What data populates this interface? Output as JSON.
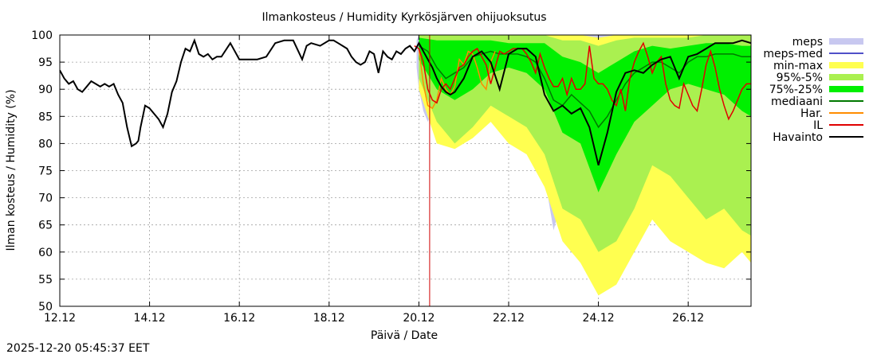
{
  "chart_data": {
    "type": "line",
    "title": "Ilmankosteus / Humidity  Kyrkösjärven ohijuoksutus",
    "xlabel": "Päivä / Date",
    "ylabel": "Ilman kosteus / Humidity (%)",
    "ylim": [
      50,
      100
    ],
    "y_ticks": [
      50,
      55,
      60,
      65,
      70,
      75,
      80,
      85,
      90,
      95,
      100
    ],
    "xlim_days": [
      0,
      15.4
    ],
    "x_ticks": [
      {
        "day": 0,
        "label": "12.12"
      },
      {
        "day": 2,
        "label": "14.12"
      },
      {
        "day": 4,
        "label": "16.12"
      },
      {
        "day": 6,
        "label": "18.12"
      },
      {
        "day": 8,
        "label": "20.12"
      },
      {
        "day": 10,
        "label": "22.12"
      },
      {
        "day": 12,
        "label": "24.12"
      },
      {
        "day": 14,
        "label": "26.12"
      }
    ],
    "forecast_start_day": 8.24,
    "grid": true,
    "legend_position": "right",
    "legend": [
      {
        "key": "meps",
        "label": "meps",
        "kind": "band",
        "color": "#c8c8f0"
      },
      {
        "key": "meps_med",
        "label": "meps-med",
        "kind": "line",
        "color": "#5050c8"
      },
      {
        "key": "minmax",
        "label": "min-max",
        "kind": "band",
        "color": "#ffff50"
      },
      {
        "key": "p95_5",
        "label": "95%-5%",
        "kind": "band",
        "color": "#aaf050"
      },
      {
        "key": "p75_25",
        "label": "75%-25%",
        "kind": "band",
        "color": "#00f000"
      },
      {
        "key": "mediaani",
        "label": "mediaani",
        "kind": "line",
        "color": "#007800"
      },
      {
        "key": "har",
        "label": "Har.",
        "kind": "line",
        "color": "#ff8c00"
      },
      {
        "key": "il",
        "label": "IL",
        "kind": "line",
        "color": "#e00000"
      },
      {
        "key": "havainto",
        "label": "Havainto",
        "kind": "line",
        "color": "#000000"
      }
    ],
    "series": {
      "havainto": {
        "x": [
          0,
          0.1,
          0.2,
          0.3,
          0.4,
          0.5,
          0.6,
          0.7,
          0.8,
          0.9,
          1.0,
          1.1,
          1.2,
          1.3,
          1.4,
          1.5,
          1.6,
          1.7,
          1.75,
          1.8,
          1.9,
          2.0,
          2.1,
          2.2,
          2.3,
          2.4,
          2.5,
          2.6,
          2.7,
          2.8,
          2.9,
          3.0,
          3.1,
          3.2,
          3.3,
          3.4,
          3.5,
          3.6,
          3.8,
          4.0,
          4.2,
          4.4,
          4.6,
          4.8,
          5.0,
          5.2,
          5.4,
          5.5,
          5.6,
          5.8,
          6.0,
          6.1,
          6.2,
          6.3,
          6.4,
          6.5,
          6.6,
          6.7,
          6.8,
          6.9,
          7.0,
          7.1,
          7.2,
          7.3,
          7.4,
          7.5,
          7.6,
          7.7,
          7.8,
          7.9,
          8.0,
          8.1,
          8.2,
          8.3,
          8.4,
          8.5,
          8.6,
          8.7,
          8.8,
          9.0,
          9.2,
          9.4,
          9.6,
          9.8,
          10.0,
          10.2,
          10.4,
          10.6,
          10.8,
          11.0,
          11.2,
          11.4,
          11.6,
          11.8,
          12.0,
          12.2,
          12.4,
          12.6,
          12.8,
          13.0,
          13.2,
          13.4,
          13.6,
          13.8,
          14.0,
          14.2,
          14.4,
          14.6,
          14.8,
          15.0,
          15.2,
          15.4
        ],
        "y": [
          93.5,
          92,
          91,
          91.5,
          90,
          89.5,
          90.5,
          91.5,
          91,
          90.5,
          91,
          90.5,
          91,
          89,
          87.5,
          83,
          79.5,
          80,
          80.5,
          83,
          87,
          86.5,
          85.5,
          84.5,
          83,
          85.5,
          89.5,
          91.5,
          95,
          97.5,
          97,
          99,
          96.5,
          96,
          96.5,
          95.5,
          96,
          96,
          98.5,
          95.5,
          95.5,
          95.5,
          96,
          98.5,
          99,
          99,
          95.5,
          98,
          98.5,
          98,
          99,
          99,
          98.5,
          98,
          97.5,
          96,
          95,
          94.5,
          95,
          97,
          96.5,
          93,
          97,
          96,
          95.5,
          97,
          96.5,
          97.5,
          98,
          97,
          98.5,
          97,
          95.5,
          94,
          92,
          90.5,
          89.5,
          89,
          89.5,
          92,
          96,
          97,
          95,
          90,
          96.5,
          97.5,
          97.5,
          96,
          89,
          86,
          87,
          85.5,
          86.5,
          83,
          76,
          82,
          89.5,
          93,
          93.5,
          93,
          94.5,
          95.5,
          96,
          92,
          96,
          96.5,
          97.5,
          98.5,
          98.5,
          98.5,
          99,
          98.5
        ]
      },
      "il": {
        "x": [
          7.9,
          8.0,
          8.1,
          8.2,
          8.3,
          8.4,
          8.5,
          8.6,
          8.7,
          8.8,
          8.9,
          9.0,
          9.1,
          9.2,
          9.3,
          9.4,
          9.5,
          9.6,
          9.7,
          9.8,
          9.9,
          10.0,
          10.1,
          10.2,
          10.3,
          10.4,
          10.5,
          10.6,
          10.7,
          10.8,
          10.9,
          11.0,
          11.1,
          11.2,
          11.3,
          11.4,
          11.5,
          11.6,
          11.7,
          11.8,
          11.9,
          12.0,
          12.1,
          12.2,
          12.3,
          12.4,
          12.5,
          12.6,
          12.7,
          12.8,
          12.9,
          13.0,
          13.1,
          13.2,
          13.3,
          13.4,
          13.5,
          13.6,
          13.7,
          13.8,
          13.9,
          14.0,
          14.1,
          14.2,
          14.3,
          14.4,
          14.5,
          14.6,
          14.7,
          14.8,
          14.9,
          15.0,
          15.1,
          15.2,
          15.3,
          15.4
        ],
        "y": [
          98,
          97.5,
          95,
          90,
          88,
          87.5,
          90,
          91,
          90,
          92,
          94,
          94.5,
          96,
          97,
          97.5,
          96,
          94.5,
          91,
          94,
          97,
          96.5,
          97,
          97.5,
          97.5,
          97.5,
          96.5,
          95,
          93,
          96.5,
          94,
          92,
          90.5,
          90.5,
          92,
          89,
          92,
          90,
          90,
          91,
          98,
          92,
          91,
          91,
          90,
          88,
          87,
          90,
          86,
          92,
          95,
          97,
          98.5,
          96,
          93,
          95,
          96,
          91,
          88,
          87,
          86.5,
          91,
          89,
          87,
          86,
          90,
          94.5,
          97,
          94,
          90,
          87,
          84.5,
          86,
          88,
          90,
          91,
          91
        ]
      },
      "har": {
        "x": [
          8.0,
          8.1,
          8.2,
          8.3,
          8.4,
          8.5,
          8.6,
          8.7,
          8.8,
          8.9,
          9.0,
          9.1,
          9.2,
          9.3,
          9.4,
          9.5,
          9.6,
          9.7
        ],
        "y": [
          97.5,
          91,
          87,
          86.5,
          88,
          92,
          90,
          89,
          90.5,
          95.5,
          94.5,
          97,
          96.5,
          94,
          91,
          90,
          95,
          97
        ]
      },
      "mediaani": {
        "x": [
          8.0,
          8.2,
          8.4,
          8.6,
          8.8,
          9.0,
          9.2,
          9.4,
          9.6,
          9.8,
          10.0,
          10.2,
          10.4,
          10.6,
          10.8,
          11.0,
          11.2,
          11.4,
          11.6,
          11.8,
          12.0,
          12.2,
          12.4,
          12.6,
          12.8,
          13.0,
          13.2,
          13.4,
          13.6,
          13.8,
          14.0,
          14.2,
          14.4,
          14.6,
          14.8,
          15.0,
          15.2,
          15.4
        ],
        "y": [
          98,
          97,
          94,
          92,
          93,
          94,
          96,
          96.5,
          97,
          96.5,
          96.5,
          96.5,
          96,
          95,
          92,
          88,
          87,
          89,
          87.5,
          86,
          83,
          85,
          88,
          91,
          93,
          94,
          95,
          95,
          94,
          93,
          95,
          96,
          96,
          96.5,
          96.5,
          96.5,
          96,
          96
        ]
      },
      "p75_25": {
        "x": [
          8.0,
          8.4,
          8.8,
          9.2,
          9.6,
          10.0,
          10.4,
          10.8,
          11.2,
          11.6,
          12.0,
          12.4,
          12.8,
          13.2,
          13.6,
          14.0,
          14.4,
          14.8,
          15.2,
          15.4
        ],
        "hi": [
          99.5,
          99,
          99,
          99,
          99,
          98.5,
          98.5,
          98.5,
          96,
          95,
          93,
          95,
          97,
          98,
          97.5,
          98,
          98.5,
          98.5,
          98,
          98
        ],
        "lo": [
          95.5,
          90,
          88,
          90,
          93,
          94,
          93,
          90,
          82,
          80,
          71,
          78,
          84,
          87,
          90,
          91,
          90,
          89,
          86,
          85
        ]
      },
      "p95_5": {
        "x": [
          8.0,
          8.4,
          8.8,
          9.2,
          9.6,
          10.0,
          10.4,
          10.8,
          11.2,
          11.6,
          12.0,
          12.4,
          12.8,
          13.2,
          13.6,
          14.0,
          14.4,
          14.8,
          15.2,
          15.4
        ],
        "hi": [
          100,
          100,
          100,
          100,
          100,
          100,
          100,
          100,
          99,
          99,
          98,
          99,
          99.5,
          99.5,
          99.5,
          99.5,
          100,
          100,
          100,
          100
        ],
        "lo": [
          92,
          84,
          80,
          83,
          87,
          85,
          83,
          78,
          68,
          66,
          60,
          62,
          68,
          76,
          74,
          70,
          66,
          68,
          64,
          63
        ]
      },
      "minmax": {
        "x": [
          8.0,
          8.4,
          8.8,
          9.2,
          9.6,
          10.0,
          10.4,
          10.8,
          11.2,
          11.6,
          12.0,
          12.4,
          12.8,
          13.2,
          13.6,
          14.0,
          14.4,
          14.8,
          15.2,
          15.4
        ],
        "hi": [
          100,
          100,
          100,
          100,
          100,
          100,
          100,
          100,
          100,
          100,
          99.5,
          100,
          100,
          100,
          100,
          100,
          100,
          100,
          100,
          100
        ],
        "lo": [
          90,
          80,
          79,
          81,
          84,
          80,
          78,
          72,
          62,
          58,
          52,
          54,
          60,
          66,
          62,
          60,
          58,
          57,
          60,
          58
        ]
      },
      "meps": {
        "x": [
          7.95,
          8.0,
          8.1,
          8.2,
          8.3,
          8.4,
          8.6,
          8.8,
          9.0,
          9.2,
          9.4,
          9.6,
          9.8,
          10.0,
          10.2,
          10.4,
          10.6,
          10.8,
          11.0,
          11.2,
          11.4,
          11.6,
          11.8,
          12.0,
          12.2,
          12.4,
          12.6,
          12.8,
          13.0
        ],
        "hi": [
          99,
          100,
          100,
          100,
          100,
          100,
          100,
          100,
          100,
          100,
          100,
          100,
          100,
          100,
          100,
          100,
          100,
          100,
          100,
          100,
          100,
          100,
          100,
          100,
          100,
          100,
          100,
          100,
          100
        ],
        "lo": [
          94,
          90,
          86,
          84,
          86,
          88,
          87,
          86,
          89,
          90,
          88,
          86,
          82,
          85,
          87,
          86,
          85,
          74,
          64,
          70,
          72,
          68,
          66,
          62,
          64,
          68,
          70,
          73,
          74
        ]
      }
    }
  },
  "timestamp": "2025-12-20 05:45:37 EET"
}
